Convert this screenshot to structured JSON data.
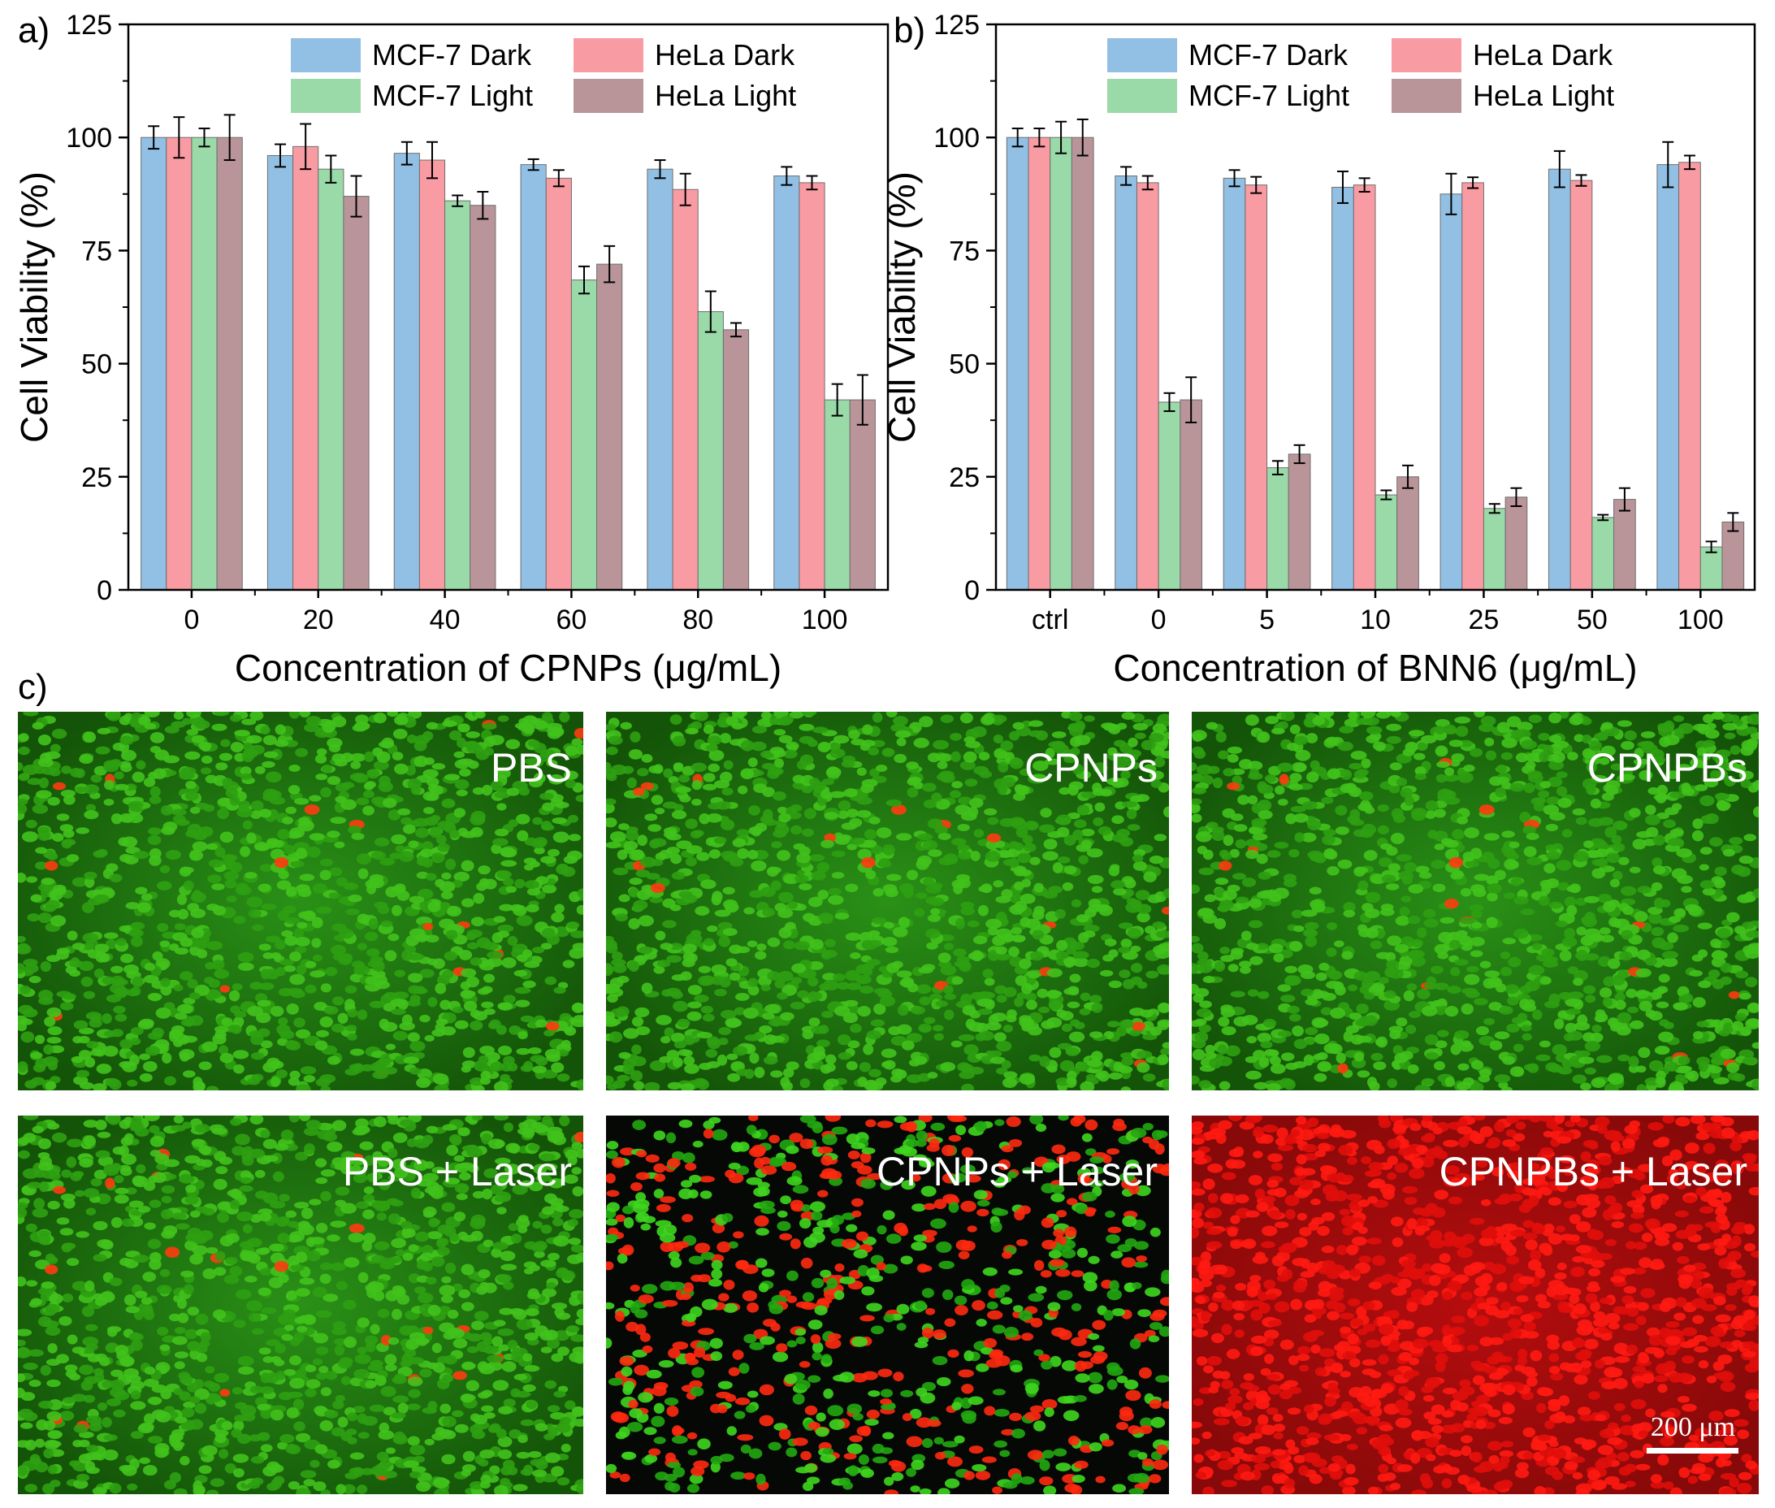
{
  "figure": {
    "panel_labels": [
      "a)",
      "b)",
      "c)"
    ],
    "colors": {
      "MCF-7 Dark": "#92c0e4",
      "HeLa Dark": "#f99ba3",
      "MCF-7 Light": "#9ad9a8",
      "HeLa Light": "#b9959a"
    }
  },
  "chart_data": [
    {
      "type": "bar",
      "panel": "a)",
      "title": "",
      "xlabel": "Concentration of CPNPs (μg/mL)",
      "ylabel": "Cell Viability (%)",
      "ylim": [
        0,
        125
      ],
      "yticks": [
        0,
        25,
        50,
        75,
        100,
        125
      ],
      "categories": [
        "0",
        "20",
        "40",
        "60",
        "80",
        "100"
      ],
      "legend": [
        "MCF-7 Dark",
        "HeLa Dark",
        "MCF-7 Light",
        "HeLa Light"
      ],
      "legend_position": "top-right",
      "series": [
        {
          "name": "MCF-7 Dark",
          "values": [
            100,
            96,
            96.5,
            94,
            93,
            91.5
          ],
          "errors": [
            2.5,
            2.5,
            2.5,
            1.2,
            2.0,
            2.0
          ]
        },
        {
          "name": "HeLa Dark",
          "values": [
            100,
            98,
            95,
            91,
            88.5,
            90
          ],
          "errors": [
            4.5,
            5.0,
            4.0,
            1.8,
            3.5,
            1.5
          ]
        },
        {
          "name": "MCF-7 Light",
          "values": [
            100,
            93,
            86,
            68.5,
            61.5,
            42
          ],
          "errors": [
            2.0,
            3.0,
            1.2,
            3.0,
            4.5,
            3.5
          ]
        },
        {
          "name": "HeLa Light",
          "values": [
            100,
            87,
            85,
            72,
            57.5,
            42
          ],
          "errors": [
            5.0,
            4.5,
            3.0,
            4.0,
            1.5,
            5.5
          ]
        }
      ]
    },
    {
      "type": "bar",
      "panel": "b)",
      "title": "",
      "xlabel": "Concentration of BNN6 (μg/mL)",
      "ylabel": "Cell Viability (%)",
      "ylim": [
        0,
        125
      ],
      "yticks": [
        0,
        25,
        50,
        75,
        100,
        125
      ],
      "categories": [
        "ctrl",
        "0",
        "5",
        "10",
        "25",
        "50",
        "100"
      ],
      "legend": [
        "MCF-7 Dark",
        "HeLa Dark",
        "MCF-7 Light",
        "HeLa Light"
      ],
      "legend_position": "top-right",
      "series": [
        {
          "name": "MCF-7 Dark",
          "values": [
            100,
            91.5,
            91,
            89,
            87.5,
            93,
            94
          ],
          "errors": [
            2.0,
            2.0,
            1.8,
            3.5,
            4.5,
            4.0,
            5.0
          ]
        },
        {
          "name": "HeLa Dark",
          "values": [
            100,
            90,
            89.5,
            89.5,
            90,
            90.5,
            94.5
          ],
          "errors": [
            2.0,
            1.5,
            1.8,
            1.5,
            1.2,
            1.2,
            1.5
          ]
        },
        {
          "name": "MCF-7 Light",
          "values": [
            100,
            41.5,
            27,
            21,
            18,
            16,
            9.5
          ],
          "errors": [
            3.5,
            2.0,
            1.5,
            1.0,
            1.0,
            0.6,
            1.2
          ]
        },
        {
          "name": "HeLa Light",
          "values": [
            100,
            42,
            30,
            25,
            20.5,
            20,
            15
          ],
          "errors": [
            4.0,
            5.0,
            2.0,
            2.5,
            2.0,
            2.5,
            2.0
          ]
        }
      ]
    }
  ],
  "microscopy": {
    "panel": "c)",
    "tiles": [
      {
        "label": "PBS",
        "live_ratio": 0.99
      },
      {
        "label": "CPNPs",
        "live_ratio": 0.99
      },
      {
        "label": "CPNPBs",
        "live_ratio": 0.99
      },
      {
        "label": "PBS + Laser",
        "live_ratio": 0.99
      },
      {
        "label": "CPNPs + Laser",
        "live_ratio": 0.6
      },
      {
        "label": "CPNPBs + Laser",
        "live_ratio": 0.0
      }
    ],
    "scale_bar": "200 μm"
  }
}
